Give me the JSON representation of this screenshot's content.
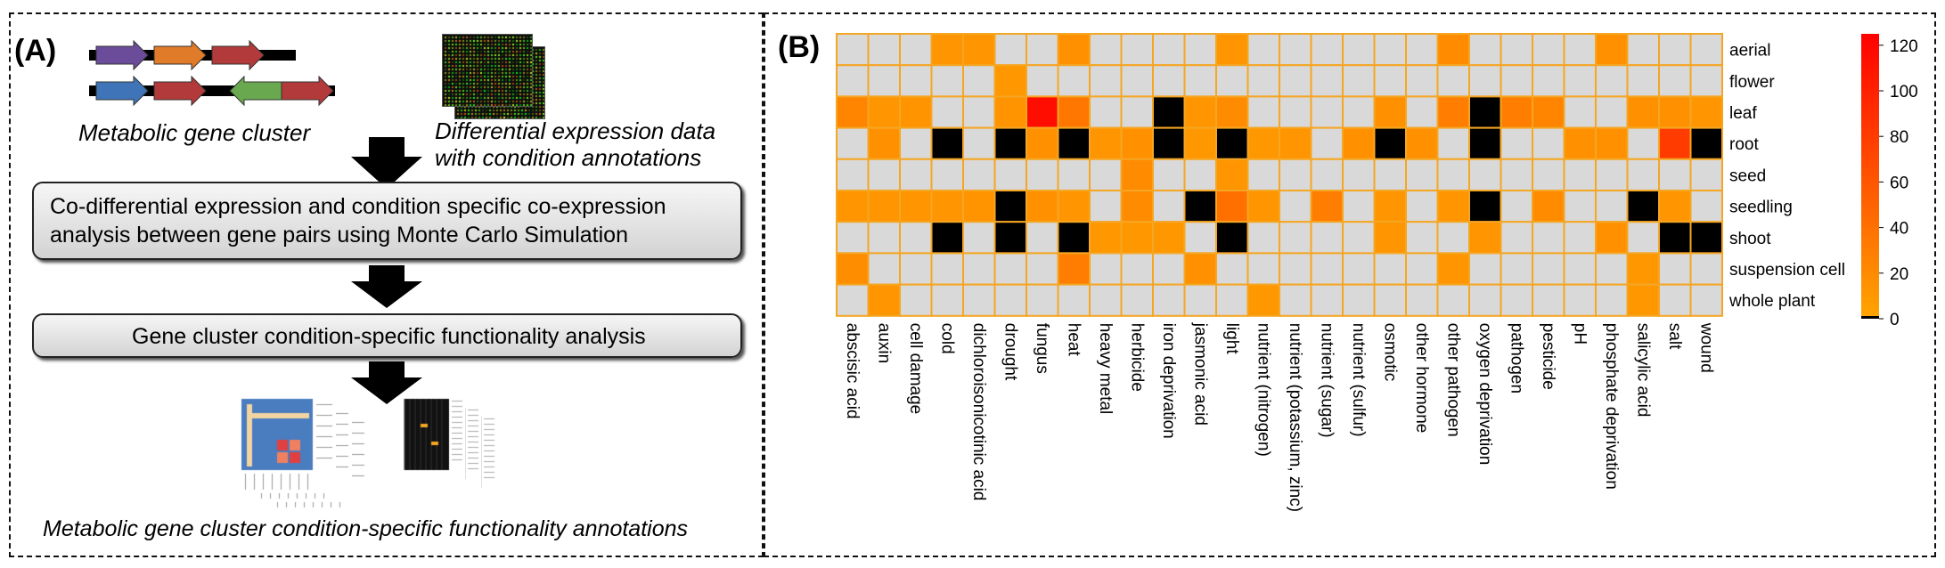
{
  "panel_a": {
    "label": "(A)",
    "gene_cluster_caption": "Metabolic gene cluster",
    "expression_caption_line1": "Differential expression data",
    "expression_caption_line2": "with condition annotations",
    "step1_line1": "Co-differential expression and condition specific co-expression",
    "step1_line2": "analysis between gene pairs using Monte Carlo Simulation",
    "step2": "Gene cluster condition-specific functionality analysis",
    "output_caption": "Metabolic gene cluster condition-specific functionality annotations",
    "gene_colors": [
      "#6b4c9a",
      "#e07b2a",
      "#b33a3a",
      "#3f74b8",
      "#b33a3a",
      "#6aa84f",
      "#b33a3a"
    ]
  },
  "panel_b": {
    "label": "(B)",
    "chart_data": {
      "type": "heatmap",
      "rows": [
        "aerial",
        "flower",
        "leaf",
        "root",
        "seed",
        "seedling",
        "shoot",
        "suspension cell",
        "whole plant"
      ],
      "columns": [
        "abscisic acid",
        "auxin",
        "cell damage",
        "cold",
        "dichloroisonicotinic acid",
        "drought",
        "fungus",
        "heat",
        "heavy metal",
        "herbicide",
        "iron deprivation",
        "jasmonic acid",
        "light",
        "nutrient (nitrogen)",
        "nutrient (potassium, zinc)",
        "nutrient (sugar)",
        "nutrient (sulfur)",
        "osmotic",
        "other hormone",
        "other pathogen",
        "oxygen deprivation",
        "pathogen",
        "pesticide",
        "pH",
        "phosphate deprivation",
        "salicylic acid",
        "salt",
        "wound"
      ],
      "missing_color": "#d9d9d9",
      "grid_color": "#f5a623",
      "zero_color": "#000000",
      "colorbar": {
        "min": 0,
        "max": 125,
        "ticks": [
          0,
          20,
          40,
          60,
          80,
          100,
          120
        ],
        "colors": [
          "#ffa500",
          "#ff0000"
        ]
      },
      "values": [
        [
          null,
          null,
          null,
          12,
          12,
          null,
          null,
          15,
          null,
          null,
          null,
          null,
          12,
          null,
          null,
          null,
          null,
          null,
          null,
          20,
          null,
          null,
          null,
          null,
          15,
          null,
          null,
          null
        ],
        [
          null,
          null,
          null,
          null,
          null,
          10,
          null,
          null,
          null,
          null,
          null,
          null,
          null,
          null,
          null,
          null,
          null,
          null,
          null,
          null,
          null,
          null,
          null,
          null,
          null,
          null,
          null,
          null
        ],
        [
          25,
          12,
          14,
          null,
          null,
          14,
          115,
          35,
          null,
          null,
          0,
          12,
          20,
          null,
          null,
          null,
          null,
          15,
          null,
          30,
          0,
          30,
          25,
          null,
          null,
          15,
          15,
          12
        ],
        [
          null,
          15,
          null,
          0,
          null,
          0,
          15,
          0,
          12,
          15,
          0,
          10,
          0,
          10,
          12,
          null,
          15,
          0,
          15,
          null,
          0,
          null,
          null,
          15,
          15,
          null,
          80,
          0
        ],
        [
          null,
          null,
          null,
          null,
          null,
          null,
          null,
          null,
          null,
          20,
          null,
          null,
          12,
          null,
          null,
          null,
          null,
          null,
          null,
          null,
          null,
          null,
          null,
          null,
          null,
          null,
          null,
          null
        ],
        [
          12,
          12,
          12,
          12,
          14,
          0,
          15,
          12,
          null,
          20,
          null,
          0,
          40,
          12,
          null,
          30,
          null,
          12,
          null,
          12,
          0,
          null,
          20,
          null,
          null,
          0,
          12,
          null
        ],
        [
          null,
          null,
          null,
          0,
          null,
          0,
          null,
          0,
          10,
          10,
          10,
          null,
          0,
          null,
          null,
          null,
          null,
          12,
          null,
          null,
          12,
          null,
          null,
          null,
          15,
          null,
          0,
          0
        ],
        [
          18,
          null,
          null,
          null,
          null,
          null,
          null,
          30,
          null,
          null,
          null,
          15,
          null,
          null,
          null,
          null,
          null,
          null,
          null,
          12,
          null,
          null,
          null,
          null,
          null,
          10,
          null,
          null
        ],
        [
          null,
          12,
          null,
          null,
          null,
          null,
          null,
          null,
          null,
          null,
          null,
          null,
          null,
          10,
          null,
          null,
          null,
          null,
          null,
          null,
          null,
          null,
          null,
          null,
          null,
          10,
          null,
          null
        ]
      ]
    }
  }
}
